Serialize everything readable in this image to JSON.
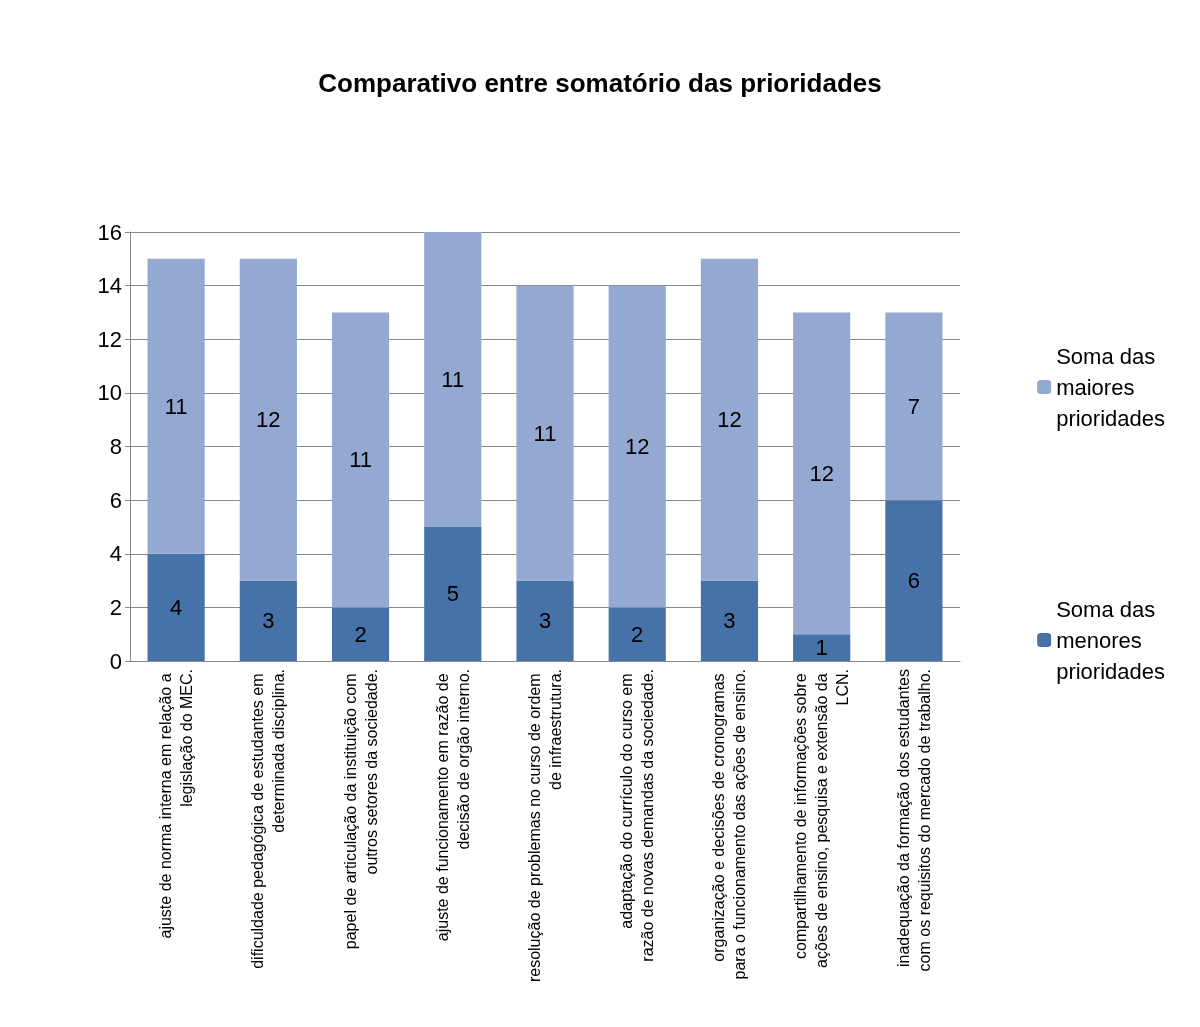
{
  "chart_data": {
    "type": "bar",
    "title": "Comparativo entre somatório das prioridades",
    "categories": [
      "ajuste de norma interna em relação a legislação do MEC.",
      "dificuldade pedagógica de estudantes em determinada disciplina.",
      "papel de articulação da instituição com outros setores da sociedade.",
      "ajuste de funcionamento em razão de decisão de orgão interno.",
      "resolução de problemas no curso de ordem de infraestrutura.",
      "adaptação do currículo do curso em razão de novas demandas da sociedade.",
      "organização e decisões de cronogramas para o funcionamento das ações de ensino.",
      "compartilhamento de informações sobre ações de ensino, pesquisa e extensão da LCN.",
      "inadequação da formação dos estudantes com os requisitos do mercado de trabalho."
    ],
    "series": [
      {
        "name": "Soma das menores prioridades",
        "color": "#4672a8",
        "values": [
          4,
          3,
          2,
          5,
          3,
          2,
          3,
          1,
          6
        ]
      },
      {
        "name": "Soma das maiores prioridades",
        "color": "#94a9d2",
        "values": [
          11,
          12,
          11,
          11,
          11,
          12,
          12,
          12,
          7
        ]
      }
    ],
    "stacked": true,
    "data_labels": true,
    "ylim": [
      0,
      16
    ],
    "yticks": [
      0,
      2,
      4,
      6,
      8,
      10,
      12,
      14,
      16
    ],
    "grid": "y",
    "legend": "right"
  }
}
